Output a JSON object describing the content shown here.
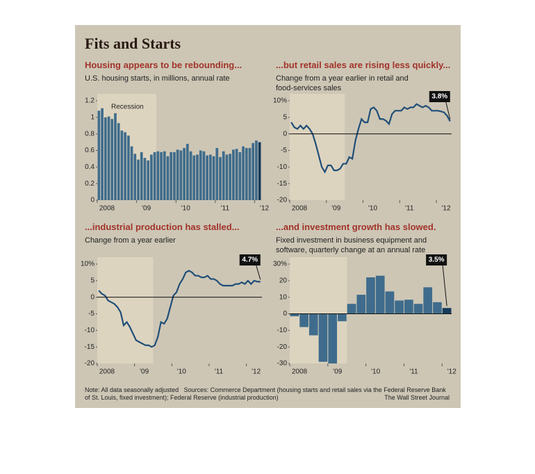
{
  "title": "Fits and Starts",
  "note": "Note: All data seasonally adjusted",
  "source": "Sources: Commerce Department (housing starts and retail sales via the Federal Reserve Bank of St. Louis, fixed investment); Federal Reserve (industrial production)",
  "credit": "The Wall Street Journal",
  "chart_data": [
    {
      "type": "bar",
      "title": "Housing appears to be rebounding...",
      "subtitle": "U.S. housing starts, in millions, annual rate",
      "annotation": "Recession",
      "categories": [
        "2008",
        null,
        null,
        null,
        null,
        null,
        null,
        null,
        null,
        null,
        null,
        null,
        "'09",
        null,
        null,
        null,
        null,
        null,
        null,
        null,
        null,
        null,
        null,
        null,
        "'10",
        null,
        null,
        null,
        null,
        null,
        null,
        null,
        null,
        null,
        null,
        null,
        "'11",
        null,
        null,
        null,
        null,
        null,
        null,
        null,
        null,
        null,
        null,
        null,
        "'12",
        null
      ],
      "values": [
        1.08,
        1.11,
        1.0,
        1.01,
        0.98,
        1.05,
        0.93,
        0.84,
        0.82,
        0.78,
        0.65,
        0.56,
        0.49,
        0.58,
        0.51,
        0.48,
        0.55,
        0.58,
        0.59,
        0.58,
        0.59,
        0.53,
        0.58,
        0.58,
        0.61,
        0.6,
        0.63,
        0.68,
        0.59,
        0.54,
        0.55,
        0.6,
        0.59,
        0.54,
        0.55,
        0.53,
        0.63,
        0.52,
        0.59,
        0.55,
        0.56,
        0.61,
        0.62,
        0.58,
        0.65,
        0.63,
        0.63,
        0.69,
        0.72,
        0.7
      ],
      "color": "#3f6c8c",
      "highlight_color": "#173a5c",
      "ylim": [
        0,
        1.2
      ],
      "yticks": [
        0,
        0.2,
        0.4,
        0.6,
        0.8,
        1.0,
        1.2
      ]
    },
    {
      "type": "line",
      "title": "...but retail sales are rising less quickly...",
      "subtitle": "Change from a year earlier in retail and food-services sales",
      "categories": [
        "2008",
        null,
        null,
        null,
        null,
        null,
        null,
        null,
        null,
        null,
        null,
        null,
        "'09",
        null,
        null,
        null,
        null,
        null,
        null,
        null,
        null,
        null,
        null,
        null,
        "'10",
        null,
        null,
        null,
        null,
        null,
        null,
        null,
        null,
        null,
        null,
        null,
        "'11",
        null,
        null,
        null,
        null,
        null,
        null,
        null,
        null,
        null,
        null,
        null,
        "'12",
        null,
        null,
        null,
        null
      ],
      "values": [
        3.5,
        2.0,
        1.5,
        2.5,
        1.5,
        2.5,
        1.5,
        0,
        -3,
        -6.5,
        -10,
        -11.5,
        -9.5,
        -9.5,
        -11,
        -11,
        -10.5,
        -9,
        -9,
        -7,
        -7.5,
        -2,
        1.5,
        4.5,
        3.5,
        3.5,
        7.5,
        8,
        7,
        4.5,
        4.5,
        4,
        3,
        6,
        7,
        7,
        7,
        8,
        7.5,
        8,
        8,
        9,
        8.5,
        8,
        8.5,
        8,
        7,
        7,
        7,
        6.8,
        6.5,
        5.5,
        3.8
      ],
      "value_labels": [
        null,
        null,
        null,
        null,
        null,
        null,
        null,
        null,
        null,
        null,
        null,
        null,
        null,
        null,
        null,
        null,
        null,
        null,
        null,
        null,
        null,
        null,
        null,
        null,
        null,
        null,
        null,
        null,
        null,
        null,
        null,
        null,
        null,
        null,
        null,
        null,
        null,
        null,
        null,
        null,
        null,
        null,
        null,
        null,
        null,
        null,
        null,
        null,
        null,
        null,
        null,
        null,
        "3.8%"
      ],
      "color": "#1f4e78",
      "ylim": [
        -20,
        10
      ],
      "yticks": [
        -20,
        -15,
        -10,
        -5,
        0,
        5,
        {
          "value": 10,
          "label": "10%"
        }
      ]
    },
    {
      "type": "line",
      "title": "...industrial production has stalled...",
      "subtitle": "Change from a year earlier",
      "categories": [
        "2008",
        null,
        null,
        null,
        null,
        null,
        null,
        null,
        null,
        null,
        null,
        null,
        "'09",
        null,
        null,
        null,
        null,
        null,
        null,
        null,
        null,
        null,
        null,
        null,
        "'10",
        null,
        null,
        null,
        null,
        null,
        null,
        null,
        null,
        null,
        null,
        null,
        "'11",
        null,
        null,
        null,
        null,
        null,
        null,
        null,
        null,
        null,
        null,
        null,
        "'12",
        null,
        null,
        null,
        null
      ],
      "values": [
        2,
        1,
        0.5,
        -1,
        -1.5,
        -2,
        -3,
        -4.5,
        -8.5,
        -7.5,
        -9,
        -11,
        -13,
        -13.5,
        -14,
        -14.5,
        -14.5,
        -15,
        -14.5,
        -12,
        -7.5,
        -8,
        -6.5,
        -3,
        0.5,
        1.5,
        4,
        5.5,
        7.5,
        8,
        7.5,
        6.5,
        6.5,
        6,
        6,
        6.5,
        5.5,
        5.5,
        5,
        4,
        3.5,
        3.5,
        3.5,
        3.5,
        4,
        4,
        4.5,
        4,
        5,
        4,
        5,
        4.7,
        4.7
      ],
      "value_labels": [
        null,
        null,
        null,
        null,
        null,
        null,
        null,
        null,
        null,
        null,
        null,
        null,
        null,
        null,
        null,
        null,
        null,
        null,
        null,
        null,
        null,
        null,
        null,
        null,
        null,
        null,
        null,
        null,
        null,
        null,
        null,
        null,
        null,
        null,
        null,
        null,
        null,
        null,
        null,
        null,
        null,
        null,
        null,
        null,
        null,
        null,
        null,
        null,
        null,
        null,
        null,
        null,
        "4.7%"
      ],
      "color": "#1f4e78",
      "ylim": [
        -20,
        10
      ],
      "yticks": [
        -20,
        -15,
        -10,
        -5,
        0,
        5,
        {
          "value": 10,
          "label": "10%"
        }
      ]
    },
    {
      "type": "bar",
      "title": "...and investment growth has slowed.",
      "subtitle": "Fixed investment in business equipment and software, quarterly change at an annual rate",
      "categories": [
        "2008",
        null,
        null,
        null,
        "'09",
        null,
        null,
        null,
        "'10",
        null,
        null,
        null,
        "'11",
        null,
        null,
        null,
        "'12"
      ],
      "values": [
        -1.5,
        -8,
        -13,
        -29,
        -30,
        -4.5,
        6,
        11.5,
        22,
        23,
        13.5,
        8,
        8.5,
        6,
        16,
        7,
        3.5
      ],
      "value_labels": [
        null,
        null,
        null,
        null,
        null,
        null,
        null,
        null,
        null,
        null,
        null,
        null,
        null,
        null,
        null,
        null,
        "3.5%"
      ],
      "color": "#3f6c8c",
      "highlight_color": "#173a5c",
      "ylim": [
        -30,
        30
      ],
      "yticks": [
        -30,
        -20,
        -10,
        0,
        10,
        20,
        {
          "value": 30,
          "label": "30%"
        }
      ]
    }
  ]
}
